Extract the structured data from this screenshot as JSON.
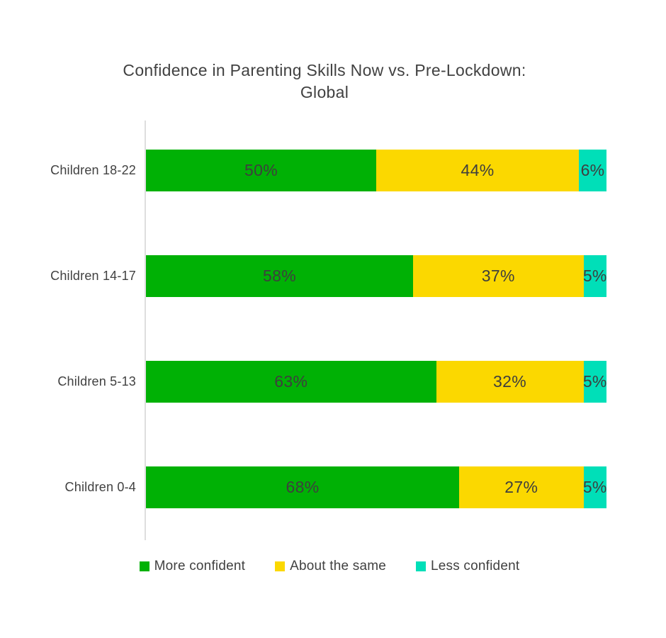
{
  "page": {
    "background_color": "#FFFFFF",
    "text_color": "#414141",
    "axis_line_color": "#DEDEDE"
  },
  "chart_data": {
    "type": "bar",
    "orientation": "horizontal",
    "stacked": true,
    "title_lines": [
      "Confidence in Parenting Skills Now vs. Pre-Lockdown:",
      "Global"
    ],
    "categories": [
      "Children 18-22",
      "Children 14-17",
      "Children 5-13",
      "Children 0-4"
    ],
    "series": [
      {
        "name": "More confident",
        "color": "#00B105",
        "values": [
          50,
          58,
          63,
          68
        ]
      },
      {
        "name": "About the same",
        "color": "#FBD800",
        "values": [
          44,
          37,
          32,
          27
        ]
      },
      {
        "name": "Less confident",
        "color": "#00DFB8",
        "values": [
          6,
          5,
          5,
          5
        ]
      }
    ],
    "value_suffix": "%",
    "xlim": [
      0,
      100
    ],
    "grid": false,
    "legend_position": "bottom"
  }
}
